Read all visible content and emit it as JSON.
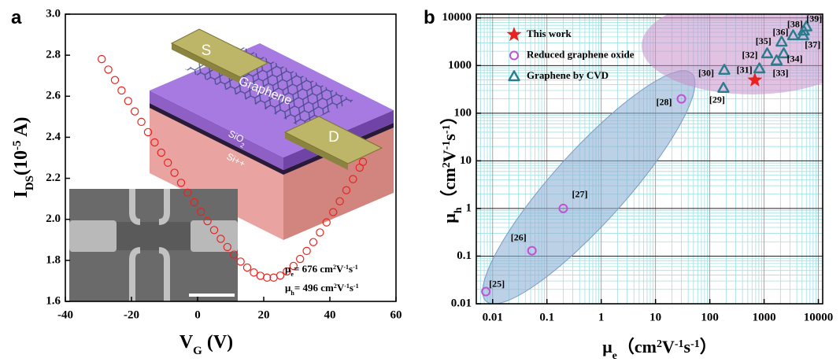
{
  "chart_data": [
    {
      "type": "scatter",
      "panel_label": "a",
      "x_label": [
        "V",
        "G",
        " (V)"
      ],
      "y_label": [
        "I",
        "DS",
        "(10",
        "-5",
        " A)"
      ],
      "xlim": [
        -40,
        60
      ],
      "xticks": [
        -40,
        -20,
        0,
        20,
        40,
        60
      ],
      "ylim": [
        1.6,
        3
      ],
      "yticks": [
        1.6,
        1.8,
        {
          "value": 2,
          "label": "2.0"
        },
        2.2,
        2.4,
        2.6,
        2.8,
        {
          "value": 3,
          "label": "3.0"
        }
      ],
      "grid": false,
      "series": [
        {
          "color": "#e8231f",
          "marker": "open-circle",
          "x": [
            -29,
            -27,
            -25,
            -23,
            -21,
            -19,
            -17,
            -15,
            -13,
            -11,
            -9,
            -7,
            -5,
            -3,
            -1,
            1,
            3,
            5,
            7,
            9,
            11,
            13,
            15,
            17,
            19,
            21,
            23,
            25,
            27,
            29,
            31,
            33,
            35,
            37,
            39,
            41,
            43,
            45,
            47,
            49,
            50
          ],
          "values": [
            2.781,
            2.73,
            2.679,
            2.628,
            2.577,
            2.526,
            2.475,
            2.425,
            2.375,
            2.325,
            2.276,
            2.227,
            2.178,
            2.13,
            2.083,
            2.037,
            1.991,
            1.948,
            1.905,
            1.865,
            1.828,
            1.794,
            1.765,
            1.741,
            1.725,
            1.716,
            1.716,
            1.726,
            1.746,
            1.773,
            1.807,
            1.846,
            1.889,
            1.936,
            1.985,
            2.035,
            2.088,
            2.142,
            2.196,
            2.252,
            2.28
          ]
        }
      ],
      "annotations": [
        [
          "μ",
          "e",
          "= 676 cm",
          "2",
          "V",
          "-1",
          "s",
          "-1"
        ],
        [
          "μ",
          "h",
          "= 496 cm",
          "2",
          "V",
          "-1",
          "s",
          "-1"
        ]
      ],
      "inset_labels": [
        "S",
        "D",
        "Graphene",
        [
          "SiO",
          "2"
        ],
        "Si++"
      ]
    },
    {
      "type": "scatter",
      "panel_label": "b",
      "x_label": [
        "μ",
        "e",
        "（cm",
        "2",
        "V",
        "-1",
        "s",
        "-1",
        "）"
      ],
      "y_label": [
        "μ",
        "h",
        "（cm",
        "2",
        "V",
        "-1",
        "s",
        "-1",
        "）"
      ],
      "log_x": true,
      "log_y": true,
      "xlim": [
        0.005,
        12000
      ],
      "xticks": [
        0.01,
        0.1,
        1,
        10,
        100,
        1000,
        10000
      ],
      "ylim": [
        0.01,
        12000
      ],
      "yticks": [
        0.01,
        0.1,
        1,
        10,
        100,
        1000,
        10000
      ],
      "grid": true,
      "minor_grid": true,
      "legend": "upper left",
      "series": [
        {
          "name": "This work",
          "color": "#e8231f",
          "marker": "star",
          "x": [
            676
          ],
          "values": [
            496
          ]
        },
        {
          "name": "Reduced graphene oxide",
          "color": "#c050d8",
          "marker": "circle",
          "x": [
            0.0075,
            0.053,
            0.2,
            30
          ],
          "values": [
            0.018,
            0.13,
            1,
            200
          ],
          "point_labels": [
            "[25]",
            "[26]",
            "[27]",
            "[28]"
          ]
        },
        {
          "name": "Graphene by CVD",
          "color": "#2b7c8c",
          "marker": "triangle",
          "x": [
            178,
            185,
            819,
            1140,
            1700,
            2300,
            2100,
            3430,
            5250,
            5370,
            6000
          ],
          "values": [
            339,
            813,
            870,
            1800,
            1280,
            1800,
            3160,
            4300,
            4300,
            5400,
            6600
          ],
          "point_labels": [
            "[29]",
            "[30]",
            "[31]",
            "[32]",
            "[33]",
            "[34]",
            "[35]",
            "[36]",
            "[37]",
            "[38]",
            "[39]"
          ]
        }
      ]
    }
  ]
}
